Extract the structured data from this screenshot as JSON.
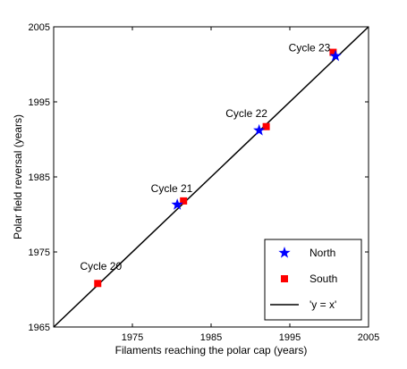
{
  "chart_data": {
    "type": "scatter",
    "xlabel": "Filaments reaching the polar cap (years)",
    "ylabel": "Polar field reversal (years)",
    "xlim": [
      1965,
      2005
    ],
    "ylim": [
      1965,
      2005
    ],
    "xticks": [
      1975,
      1985,
      1995,
      2005
    ],
    "yticks": [
      1965,
      1975,
      1985,
      1995,
      2005
    ],
    "grid": false,
    "legend_position": "bottom-right",
    "series": [
      {
        "name": "North",
        "marker": "star",
        "color": "#0000ff",
        "points": [
          {
            "x": 1980.7,
            "y": 1981.3
          },
          {
            "x": 1991.1,
            "y": 1991.2
          },
          {
            "x": 2000.8,
            "y": 2001.1
          }
        ]
      },
      {
        "name": "South",
        "marker": "square",
        "color": "#ff0000",
        "points": [
          {
            "x": 1970.6,
            "y": 1970.8
          },
          {
            "x": 1981.5,
            "y": 1981.8
          },
          {
            "x": 1992.0,
            "y": 1991.7
          },
          {
            "x": 2000.5,
            "y": 2001.6
          }
        ]
      },
      {
        "name": "'y = x'",
        "marker": "line",
        "color": "#000000",
        "points": [
          {
            "x": 1965,
            "y": 1965
          },
          {
            "x": 2005,
            "y": 2005
          }
        ]
      }
    ],
    "annotations": [
      {
        "text": "Cycle 20",
        "x": 1971.0,
        "y": 1972.6
      },
      {
        "text": "Cycle 21",
        "x": 1980.0,
        "y": 1983.0
      },
      {
        "text": "Cycle 22",
        "x": 1989.5,
        "y": 1993.0
      },
      {
        "text": "Cycle 23",
        "x": 1997.5,
        "y": 2001.7
      }
    ]
  }
}
